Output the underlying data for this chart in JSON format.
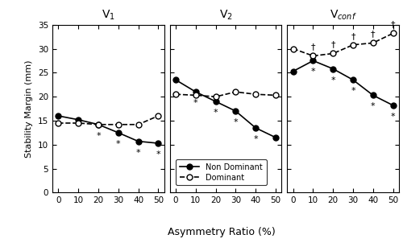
{
  "x": [
    0,
    10,
    20,
    30,
    40,
    50
  ],
  "v1_nd": [
    16.0,
    15.2,
    14.2,
    12.5,
    10.7,
    10.3
  ],
  "v1_d": [
    14.5,
    14.5,
    14.2,
    14.2,
    14.2,
    16.0
  ],
  "v1_nd_sig": [
    false,
    false,
    true,
    true,
    true,
    true
  ],
  "v1_d_sig": [
    false,
    false,
    false,
    false,
    false,
    false
  ],
  "v2_nd": [
    23.5,
    21.0,
    19.0,
    17.0,
    13.5,
    11.5
  ],
  "v2_d": [
    20.5,
    20.3,
    20.0,
    21.0,
    20.5,
    20.3
  ],
  "v2_nd_sig": [
    false,
    true,
    true,
    true,
    true,
    false
  ],
  "v2_d_sig": [
    false,
    false,
    false,
    false,
    false,
    false
  ],
  "v3_nd": [
    25.3,
    27.5,
    25.8,
    23.5,
    20.3,
    18.2
  ],
  "v3_d": [
    30.0,
    28.5,
    29.0,
    30.8,
    31.2,
    33.2
  ],
  "v3_nd_sig": [
    false,
    true,
    true,
    true,
    true,
    true
  ],
  "v3_d_sig": [
    false,
    true,
    true,
    true,
    true,
    true
  ],
  "xlabel": "Asymmetry Ratio (%)",
  "ylabel": "Stability Margin (mm)",
  "titles": [
    "V$_1$",
    "V$_2$",
    "V$_{conf}$"
  ],
  "ylim": [
    0,
    35
  ],
  "yticks": [
    0,
    5,
    10,
    15,
    20,
    25,
    30,
    35
  ],
  "xticks": [
    0,
    10,
    20,
    30,
    40,
    50
  ],
  "legend_nd": "Non Dominant",
  "legend_d": "Dominant",
  "sig_star": "*",
  "sig_dagger": "†"
}
